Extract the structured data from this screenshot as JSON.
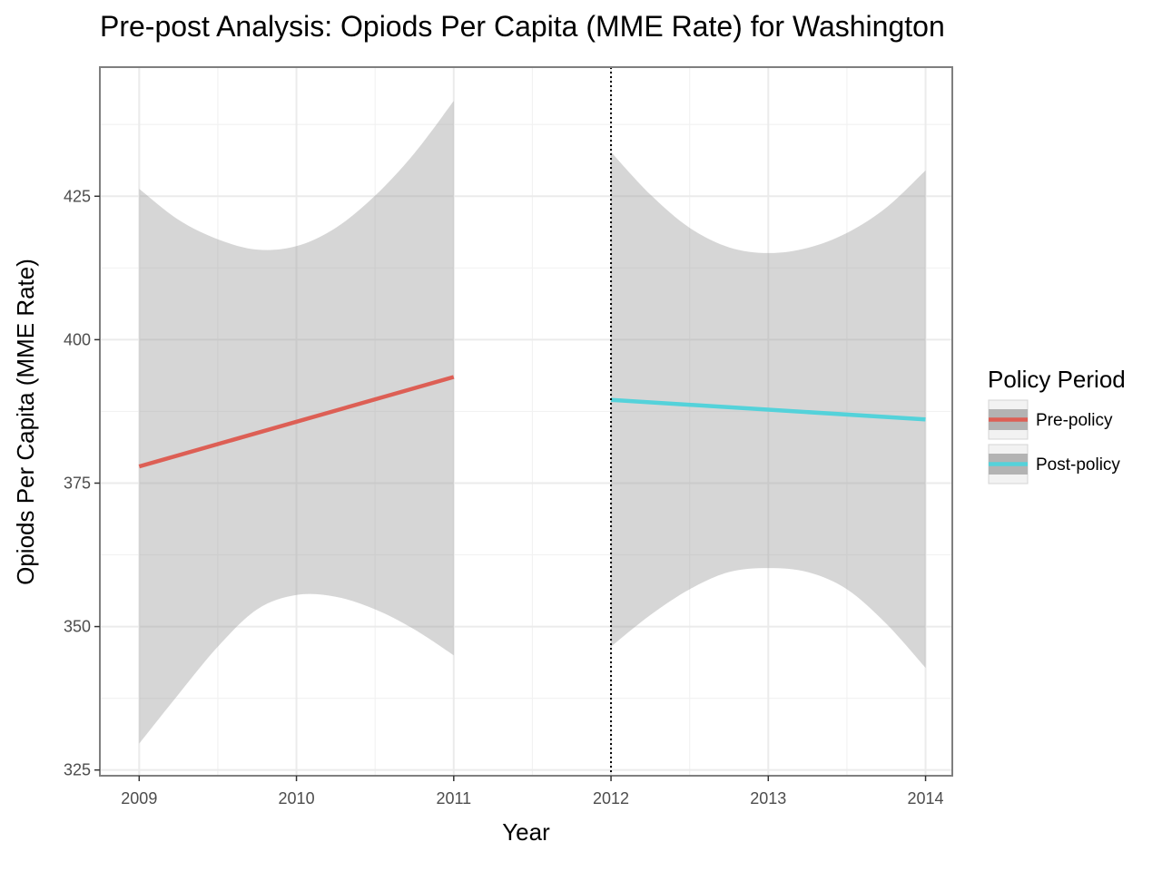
{
  "chart_data": {
    "type": "line",
    "title": "Pre-post Analysis: Opiods Per Capita (MME Rate) for Washington",
    "xlabel": "Year",
    "ylabel": "Opiods Per Capita (MME Rate)",
    "xlim": [
      2008.75,
      2014.17
    ],
    "ylim": [
      324.0,
      447.5
    ],
    "x_ticks": [
      2009,
      2010,
      2011,
      2012,
      2013,
      2014
    ],
    "x_tick_labels": [
      "2009",
      "2010",
      "2011",
      "2012",
      "2013",
      "2014"
    ],
    "y_ticks": [
      325,
      350,
      375,
      400,
      425
    ],
    "y_tick_labels": [
      "325",
      "350",
      "375",
      "400",
      "425"
    ],
    "grid": true,
    "policy_year": 2012,
    "legend": {
      "title": "Policy Period",
      "placement": "right",
      "entries": [
        "Pre-policy",
        "Post-policy"
      ]
    },
    "series": [
      {
        "name": "Pre-policy",
        "color": "#dd5f55",
        "x": [
          2009,
          2011
        ],
        "y": [
          377.9,
          393.5
        ],
        "ci_x": [
          2009,
          2009.25,
          2009.5,
          2009.75,
          2010,
          2010.25,
          2010.5,
          2010.75,
          2011
        ],
        "ci_upper": [
          426.3,
          420.9,
          417.5,
          415.7,
          416.3,
          419.5,
          425.1,
          432.5,
          441.6
        ],
        "ci_lower": [
          329.6,
          338.2,
          346.5,
          353.0,
          355.5,
          355.2,
          353.0,
          349.5,
          345.0
        ]
      },
      {
        "name": "Post-policy",
        "color": "#54d2da",
        "x": [
          2012,
          2014
        ],
        "y": [
          389.5,
          386.1
        ],
        "ci_x": [
          2012,
          2012.25,
          2012.5,
          2012.75,
          2013,
          2013.25,
          2013.5,
          2013.75,
          2014
        ],
        "ci_upper": [
          432.7,
          425.3,
          419.5,
          416.1,
          415.1,
          416.0,
          418.6,
          423.0,
          429.5
        ],
        "ci_lower": [
          346.5,
          352.0,
          356.5,
          359.5,
          360.2,
          359.5,
          356.5,
          350.5,
          342.8
        ]
      }
    ]
  }
}
